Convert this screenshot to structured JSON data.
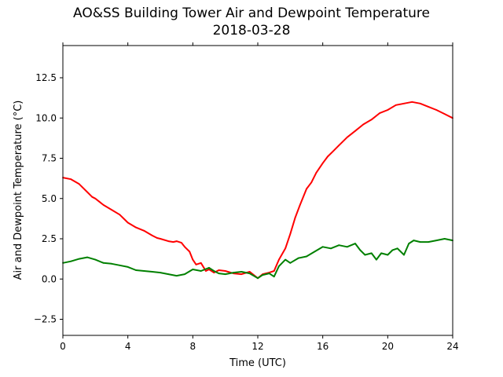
{
  "chart_data": {
    "type": "line",
    "title": "AO&SS Building Tower Air and Dewpoint Temperature",
    "subtitle": "2018-03-28",
    "xlabel": "Time (UTC)",
    "ylabel": "Air and Dewpoint Temperature (°C)",
    "xlim": [
      0,
      24
    ],
    "ylim": [
      -3.5,
      14.5
    ],
    "xticks": [
      0,
      4,
      8,
      12,
      16,
      20,
      24
    ],
    "yticks": [
      -2.5,
      0.0,
      2.5,
      5.0,
      7.5,
      10.0,
      12.5
    ],
    "ytick_labels": [
      "−2.5",
      "0.0",
      "2.5",
      "5.0",
      "7.5",
      "10.0",
      "12.5"
    ],
    "grid": false,
    "series": [
      {
        "color": "#ff0000",
        "x": [
          0,
          0.5,
          1.0,
          1.5,
          1.8,
          2.0,
          2.5,
          3.0,
          3.5,
          3.8,
          4.0,
          4.5,
          5.0,
          5.5,
          5.8,
          6.0,
          6.5,
          6.8,
          7.0,
          7.3,
          7.5,
          7.8,
          8.0,
          8.2,
          8.5,
          8.8,
          9.0,
          9.3,
          9.6,
          10.0,
          10.5,
          11.0,
          11.5,
          12.0,
          12.3,
          12.7,
          13.0,
          13.3,
          13.7,
          14.0,
          14.3,
          14.6,
          15.0,
          15.3,
          15.6,
          16.0,
          16.3,
          16.6,
          17.0,
          17.5,
          18.0,
          18.5,
          19.0,
          19.5,
          20.0,
          20.5,
          21.0,
          21.5,
          22.0,
          22.5,
          23.0,
          23.5,
          24.0
        ],
        "y": [
          6.3,
          6.2,
          5.9,
          5.4,
          5.1,
          5.0,
          4.6,
          4.3,
          4.0,
          3.7,
          3.5,
          3.2,
          3.0,
          2.7,
          2.55,
          2.5,
          2.35,
          2.3,
          2.35,
          2.25,
          2.0,
          1.7,
          1.2,
          0.9,
          1.0,
          0.5,
          0.6,
          0.4,
          0.55,
          0.5,
          0.35,
          0.3,
          0.45,
          0.05,
          0.3,
          0.4,
          0.5,
          1.2,
          1.9,
          2.8,
          3.8,
          4.6,
          5.6,
          6.0,
          6.6,
          7.2,
          7.6,
          7.9,
          8.3,
          8.8,
          9.2,
          9.6,
          9.9,
          10.3,
          10.5,
          10.8,
          10.9,
          11.0,
          10.9,
          10.7,
          10.5,
          10.25,
          10.0
        ]
      },
      {
        "color": "#008000",
        "x": [
          0,
          0.5,
          1.0,
          1.5,
          2.0,
          2.5,
          3.0,
          3.5,
          4.0,
          4.5,
          5.0,
          5.5,
          6.0,
          6.5,
          7.0,
          7.5,
          8.0,
          8.5,
          9.0,
          9.3,
          9.6,
          10.0,
          10.5,
          11.0,
          11.5,
          12.0,
          12.3,
          12.7,
          13.0,
          13.3,
          13.7,
          14.0,
          14.5,
          15.0,
          15.5,
          16.0,
          16.5,
          17.0,
          17.5,
          18.0,
          18.3,
          18.6,
          19.0,
          19.3,
          19.6,
          20.0,
          20.3,
          20.6,
          21.0,
          21.3,
          21.6,
          22.0,
          22.5,
          23.0,
          23.5,
          24.0
        ],
        "y": [
          1.0,
          1.1,
          1.25,
          1.35,
          1.2,
          1.0,
          0.95,
          0.85,
          0.75,
          0.55,
          0.5,
          0.45,
          0.4,
          0.3,
          0.2,
          0.3,
          0.6,
          0.5,
          0.7,
          0.5,
          0.35,
          0.3,
          0.4,
          0.45,
          0.35,
          0.05,
          0.25,
          0.35,
          0.15,
          0.8,
          1.2,
          1.0,
          1.3,
          1.4,
          1.7,
          2.0,
          1.9,
          2.1,
          2.0,
          2.2,
          1.8,
          1.5,
          1.6,
          1.2,
          1.6,
          1.5,
          1.8,
          1.9,
          1.5,
          2.2,
          2.4,
          2.3,
          2.3,
          2.4,
          2.5,
          2.4
        ]
      }
    ]
  }
}
